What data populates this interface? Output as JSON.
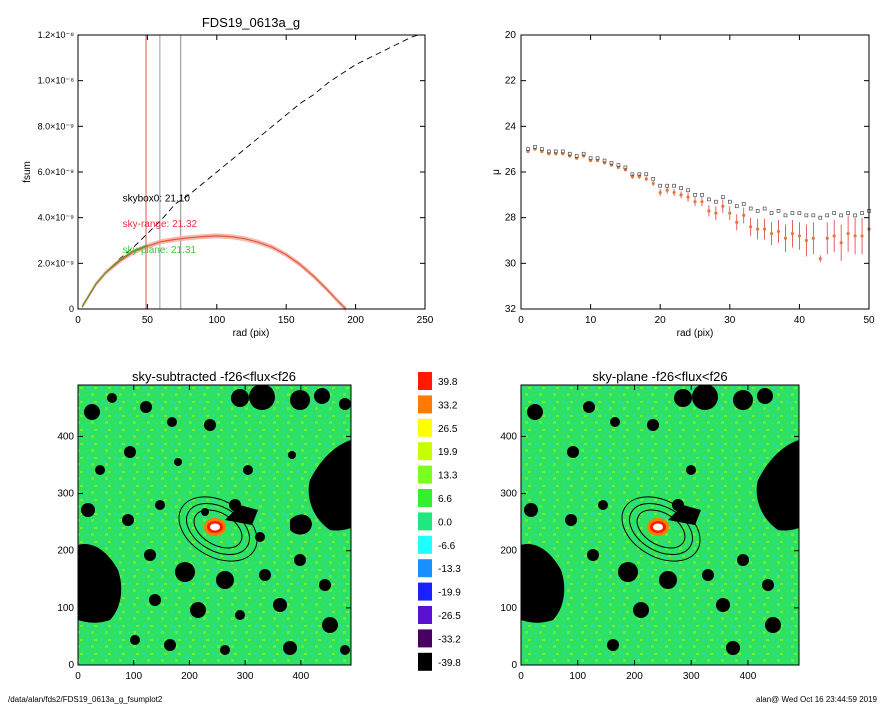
{
  "footer": {
    "path": "/data/alan/fds2/FDS19_0613a_g_fsumplot2",
    "user_time": "alan@  Wed Oct 16 23:44:59 2019"
  },
  "chart_data": [
    {
      "id": "growth",
      "type": "line",
      "title": "FDS19_0613a_g",
      "xlabel": "rad (pix)",
      "ylabel": "fsum",
      "xlim": [
        0,
        250
      ],
      "ylim": [
        0,
        1.2e-08
      ],
      "xticks": [
        0,
        50,
        100,
        150,
        200,
        250
      ],
      "yticks": [
        {
          "v": 0,
          "label": "0"
        },
        {
          "v": 2e-09,
          "label": "2.0×10⁻⁹"
        },
        {
          "v": 4e-09,
          "label": "4.0×10⁻⁹"
        },
        {
          "v": 6e-09,
          "label": "6.0×10⁻⁹"
        },
        {
          "v": 8e-09,
          "label": "8.0×10⁻⁹"
        },
        {
          "v": 1e-08,
          "label": "1.0×10⁻⁸"
        },
        {
          "v": 1.2e-08,
          "label": "1.2×10⁻⁸"
        }
      ],
      "vlines": [
        {
          "x": 49,
          "color": "#e8504a"
        },
        {
          "x": 59,
          "color": "#9a9aa8"
        },
        {
          "x": 74,
          "color": "#8a8a8a"
        }
      ],
      "series": [
        {
          "style": "dashed",
          "color": "#000000",
          "x": [
            3,
            8,
            13,
            20,
            30,
            40,
            50,
            60,
            70,
            80,
            90,
            100,
            110,
            120,
            130,
            140,
            150,
            160,
            170,
            180,
            190,
            200,
            210,
            220,
            230,
            240,
            245
          ],
          "y": [
            1e-10,
            6e-10,
            1.1e-09,
            1.6e-09,
            2.2e-09,
            2.7e-09,
            3.3e-09,
            3.9e-09,
            4.6e-09,
            5e-09,
            5.5e-09,
            6e-09,
            6.5e-09,
            7e-09,
            7.5e-09,
            8e-09,
            8.5e-09,
            9e-09,
            9.4e-09,
            9.9e-09,
            1.03e-08,
            1.07e-08,
            1.1e-08,
            1.13e-08,
            1.16e-08,
            1.19e-08,
            1.2e-08
          ]
        },
        {
          "style": "band",
          "color": "#e05a3a",
          "x": [
            3,
            8,
            13,
            20,
            30,
            40,
            50,
            60,
            70,
            80,
            90,
            100,
            110,
            120,
            130,
            140,
            150,
            160,
            170,
            180,
            188,
            193
          ],
          "y": [
            1e-10,
            6e-10,
            1.1e-09,
            1.6e-09,
            2.1e-09,
            2.5e-09,
            2.75e-09,
            2.95e-09,
            3.05e-09,
            3.12e-09,
            3.17e-09,
            3.2e-09,
            3.17e-09,
            3.08e-09,
            2.92e-09,
            2.7e-09,
            2.38e-09,
            1.95e-09,
            1.42e-09,
            8.2e-10,
            3e-10,
            0.0
          ]
        },
        {
          "style": "solid",
          "color": "#5a9a20",
          "x": [
            3,
            8,
            13,
            20,
            30,
            40,
            50
          ],
          "y": [
            1e-10,
            6e-10,
            1.1e-09,
            1.6e-09,
            2.15e-09,
            2.55e-09,
            2.8e-09
          ]
        }
      ],
      "annotations": [
        {
          "text": "skybox0: 21.10",
          "color": "#000000",
          "x": 30,
          "y": 4.7e-09
        },
        {
          "text": "sky-range: 21.32",
          "color": "#e8303a",
          "x": 30,
          "y": 3.6e-09
        },
        {
          "text": "sky-plane: 21.31",
          "color": "#3ac83a",
          "x": 30,
          "y": 2.45e-09
        }
      ]
    },
    {
      "id": "profile",
      "type": "scatter",
      "title": "",
      "xlabel": "rad (pix)",
      "ylabel": "μ",
      "xlim": [
        0,
        50
      ],
      "ylim": [
        32,
        20
      ],
      "xticks": [
        0,
        10,
        20,
        30,
        40,
        50
      ],
      "yticks": [
        20,
        22,
        24,
        26,
        28,
        30,
        32
      ],
      "series": [
        {
          "color": "#e07a40",
          "errcolor": "#e03a3a",
          "marker": "circle",
          "x": [
            1,
            2,
            3,
            4,
            5,
            6,
            7,
            8,
            9,
            10,
            11,
            12,
            13,
            14,
            15,
            16,
            17,
            18,
            19,
            20,
            21,
            22,
            23,
            24,
            25,
            26,
            27,
            28,
            29,
            30,
            31,
            32,
            33,
            34,
            35,
            36,
            37,
            38,
            39,
            40,
            41,
            42,
            43,
            44,
            45,
            46,
            47,
            48,
            49,
            50
          ],
          "y": [
            25.1,
            25.0,
            25.1,
            25.2,
            25.2,
            25.2,
            25.3,
            25.4,
            25.3,
            25.5,
            25.5,
            25.6,
            25.7,
            25.8,
            25.9,
            26.2,
            26.2,
            26.3,
            26.5,
            26.9,
            26.8,
            26.9,
            27.0,
            27.1,
            27.3,
            27.3,
            27.7,
            27.8,
            27.5,
            27.8,
            28.2,
            27.9,
            28.4,
            28.5,
            28.5,
            28.7,
            28.6,
            28.9,
            28.7,
            28.8,
            29.0,
            28.9,
            29.8,
            28.9,
            28.8,
            29.1,
            28.7,
            28.8,
            28.8,
            28.5
          ],
          "err": [
            0.05,
            0.05,
            0.05,
            0.05,
            0.05,
            0.05,
            0.05,
            0.05,
            0.05,
            0.05,
            0.05,
            0.05,
            0.05,
            0.05,
            0.08,
            0.1,
            0.1,
            0.1,
            0.1,
            0.15,
            0.15,
            0.15,
            0.15,
            0.2,
            0.2,
            0.2,
            0.25,
            0.3,
            0.3,
            0.3,
            0.35,
            0.35,
            0.4,
            0.45,
            0.45,
            0.5,
            0.5,
            0.6,
            0.6,
            0.6,
            0.7,
            0.7,
            0.15,
            0.7,
            0.7,
            0.8,
            0.8,
            0.8,
            0.8,
            0.8
          ]
        },
        {
          "color": "#333333",
          "marker": "square-open",
          "x": [
            1,
            2,
            3,
            4,
            5,
            6,
            7,
            8,
            9,
            10,
            11,
            12,
            13,
            14,
            15,
            16,
            17,
            18,
            19,
            20,
            21,
            22,
            23,
            24,
            25,
            26,
            27,
            28,
            29,
            30,
            31,
            32,
            33,
            34,
            35,
            36,
            37,
            38,
            39,
            40,
            41,
            42,
            43,
            44,
            45,
            46,
            47,
            48,
            49,
            50
          ],
          "y": [
            25.0,
            24.9,
            25.0,
            25.1,
            25.1,
            25.1,
            25.2,
            25.3,
            25.2,
            25.4,
            25.4,
            25.5,
            25.6,
            25.7,
            25.8,
            26.1,
            26.1,
            26.1,
            26.3,
            26.6,
            26.6,
            26.6,
            26.7,
            26.8,
            27.0,
            27.0,
            27.2,
            27.3,
            27.1,
            27.3,
            27.5,
            27.4,
            27.6,
            27.7,
            27.6,
            27.8,
            27.7,
            27.9,
            27.8,
            27.8,
            27.9,
            27.9,
            28.0,
            27.9,
            27.8,
            27.9,
            27.8,
            27.9,
            27.8,
            27.7
          ]
        }
      ]
    },
    {
      "id": "map-left",
      "type": "heatmap",
      "title": "sky-subtracted -f26<flux<f26",
      "xlim": [
        0,
        490
      ],
      "ylim": [
        0,
        490
      ],
      "xticks": [
        0,
        100,
        200,
        300,
        400
      ],
      "yticks": [
        0,
        100,
        200,
        300,
        400
      ]
    },
    {
      "id": "colorbar",
      "type": "heatmap",
      "title": "",
      "levels": [
        {
          "label": "39.8",
          "color": "#ff1a00"
        },
        {
          "label": "33.2",
          "color": "#ff7a00"
        },
        {
          "label": "26.5",
          "color": "#ffff00"
        },
        {
          "label": "19.9",
          "color": "#c8ff00"
        },
        {
          "label": "13.3",
          "color": "#7aff20"
        },
        {
          "label": "6.6",
          "color": "#30f030"
        },
        {
          "label": "0.0",
          "color": "#20e880"
        },
        {
          "label": "-6.6",
          "color": "#20ffff"
        },
        {
          "label": "-13.3",
          "color": "#1a90ff"
        },
        {
          "label": "-19.9",
          "color": "#1a20ff"
        },
        {
          "label": "-26.5",
          "color": "#5a10d0"
        },
        {
          "label": "-33.2",
          "color": "#4a0060"
        },
        {
          "label": "-39.8",
          "color": "#000000"
        }
      ]
    },
    {
      "id": "map-right",
      "type": "heatmap",
      "title": "sky-plane -f26<flux<f26",
      "xlim": [
        0,
        490
      ],
      "ylim": [
        0,
        490
      ],
      "xticks": [
        0,
        100,
        200,
        300,
        400
      ],
      "yticks": [
        0,
        100,
        200,
        300,
        400
      ]
    }
  ]
}
